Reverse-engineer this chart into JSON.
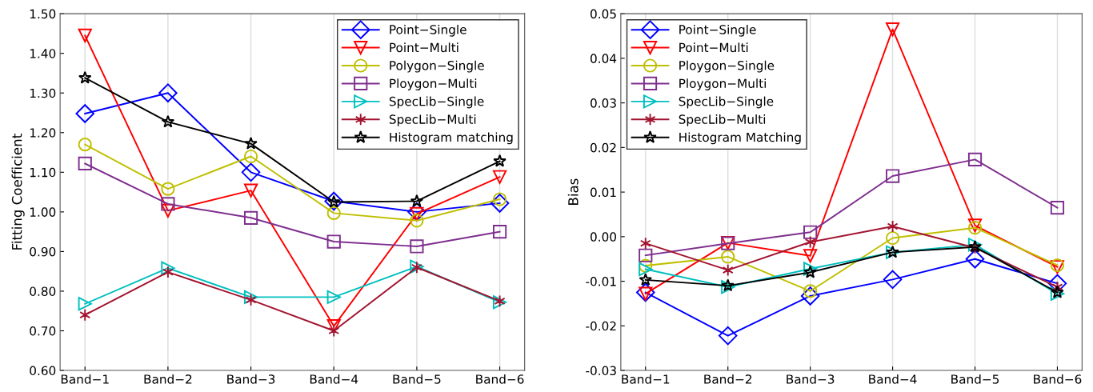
{
  "chart_data": [
    {
      "type": "line",
      "ylabel": "Fitting Coefficient",
      "categories": [
        "Band−1",
        "Band−2",
        "Band−3",
        "Band−4",
        "Band−5",
        "Band−6"
      ],
      "ylim": [
        0.6,
        1.5
      ],
      "yticks": [
        {
          "value": 0.6,
          "label": "0.60"
        },
        {
          "value": 0.7,
          "label": "0.70"
        },
        {
          "value": 0.8,
          "label": "0.80"
        },
        {
          "value": 0.9,
          "label": "0.90"
        },
        {
          "value": 1.0,
          "label": "1.00"
        },
        {
          "value": 1.1,
          "label": "1.10"
        },
        {
          "value": 1.2,
          "label": "1.20"
        },
        {
          "value": 1.3,
          "label": "1.30"
        },
        {
          "value": 1.4,
          "label": "1.40"
        },
        {
          "value": 1.5,
          "label": "1.50"
        }
      ],
      "grid": "x",
      "legend": "top right",
      "line_style": "solid",
      "series": [
        {
          "name": "Point−Single",
          "color": "#0000ff",
          "marker": "diamond",
          "values": [
            1.248,
            1.3,
            1.1,
            1.027,
            1.0,
            1.022
          ]
        },
        {
          "name": "Point−Multi",
          "color": "#ff0000",
          "marker": "triangle_down",
          "values": [
            1.445,
            1.003,
            1.054,
            0.712,
            0.995,
            1.088
          ]
        },
        {
          "name": "Polygon−Single",
          "color": "#bfbf00",
          "marker": "circle",
          "values": [
            1.17,
            1.058,
            1.14,
            0.997,
            0.978,
            1.032
          ]
        },
        {
          "name": "Ploygon−Multi",
          "color": "#7e2f8e",
          "marker": "square",
          "values": [
            1.122,
            1.02,
            0.985,
            0.925,
            0.913,
            0.95
          ]
        },
        {
          "name": "SpecLib−Single",
          "color": "#00bfbf",
          "marker": "triangle_right",
          "values": [
            0.768,
            0.858,
            0.785,
            0.785,
            0.862,
            0.772
          ]
        },
        {
          "name": "SpecLib−Multi",
          "color": "#a2142f",
          "marker": "cross",
          "values": [
            0.74,
            0.848,
            0.778,
            0.7,
            0.86,
            0.775
          ]
        },
        {
          "name": "Histogram matching",
          "color": "#000000",
          "marker": "star",
          "values": [
            1.338,
            1.227,
            1.172,
            1.025,
            1.027,
            1.128
          ]
        }
      ]
    },
    {
      "type": "line",
      "ylabel": "Bias",
      "categories": [
        "Band−1",
        "Band−2",
        "Band−3",
        "Band−4",
        "Band−5",
        "Band−6"
      ],
      "ylim": [
        -0.03,
        0.05
      ],
      "yticks": [
        {
          "value": -0.03,
          "label": "-0.03"
        },
        {
          "value": -0.02,
          "label": "-0.02"
        },
        {
          "value": -0.01,
          "label": "-0.01"
        },
        {
          "value": 0.0,
          "label": "0.00"
        },
        {
          "value": 0.01,
          "label": "0.01"
        },
        {
          "value": 0.02,
          "label": "0.02"
        },
        {
          "value": 0.03,
          "label": "0.03"
        },
        {
          "value": 0.04,
          "label": "0.04"
        },
        {
          "value": 0.05,
          "label": "0.05"
        }
      ],
      "grid": "x",
      "legend": "top left",
      "line_style": "solid",
      "series": [
        {
          "name": "Point−Single",
          "color": "#0000ff",
          "marker": "diamond",
          "values": [
            -0.0125,
            -0.0222,
            -0.0133,
            -0.0096,
            -0.005,
            -0.0105
          ]
        },
        {
          "name": "Point−Multi",
          "color": "#ff0000",
          "marker": "triangle_down",
          "values": [
            -0.0128,
            -0.0014,
            -0.0043,
            0.0465,
            0.0025,
            -0.0068
          ]
        },
        {
          "name": "Ploygon−Single",
          "color": "#bfbf00",
          "marker": "circle",
          "values": [
            -0.0065,
            -0.0045,
            -0.0122,
            -0.0003,
            0.002,
            -0.0064
          ]
        },
        {
          "name": "Ploygon−Multi",
          "color": "#7e2f8e",
          "marker": "square",
          "values": [
            -0.0042,
            -0.0015,
            0.001,
            0.0136,
            0.0173,
            0.0065
          ]
        },
        {
          "name": "SpecLib−Single",
          "color": "#00bfbf",
          "marker": "triangle_right",
          "values": [
            -0.0073,
            -0.0113,
            -0.0072,
            -0.0035,
            -0.0018,
            -0.0128
          ]
        },
        {
          "name": "SpecLib−Multi",
          "color": "#a2142f",
          "marker": "cross",
          "values": [
            -0.0015,
            -0.0075,
            -0.0012,
            0.0023,
            -0.0025,
            -0.0113
          ]
        },
        {
          "name": "Histogram Matching",
          "color": "#000000",
          "marker": "star",
          "values": [
            -0.0097,
            -0.011,
            -0.008,
            -0.0035,
            -0.0023,
            -0.0125
          ]
        }
      ]
    }
  ]
}
